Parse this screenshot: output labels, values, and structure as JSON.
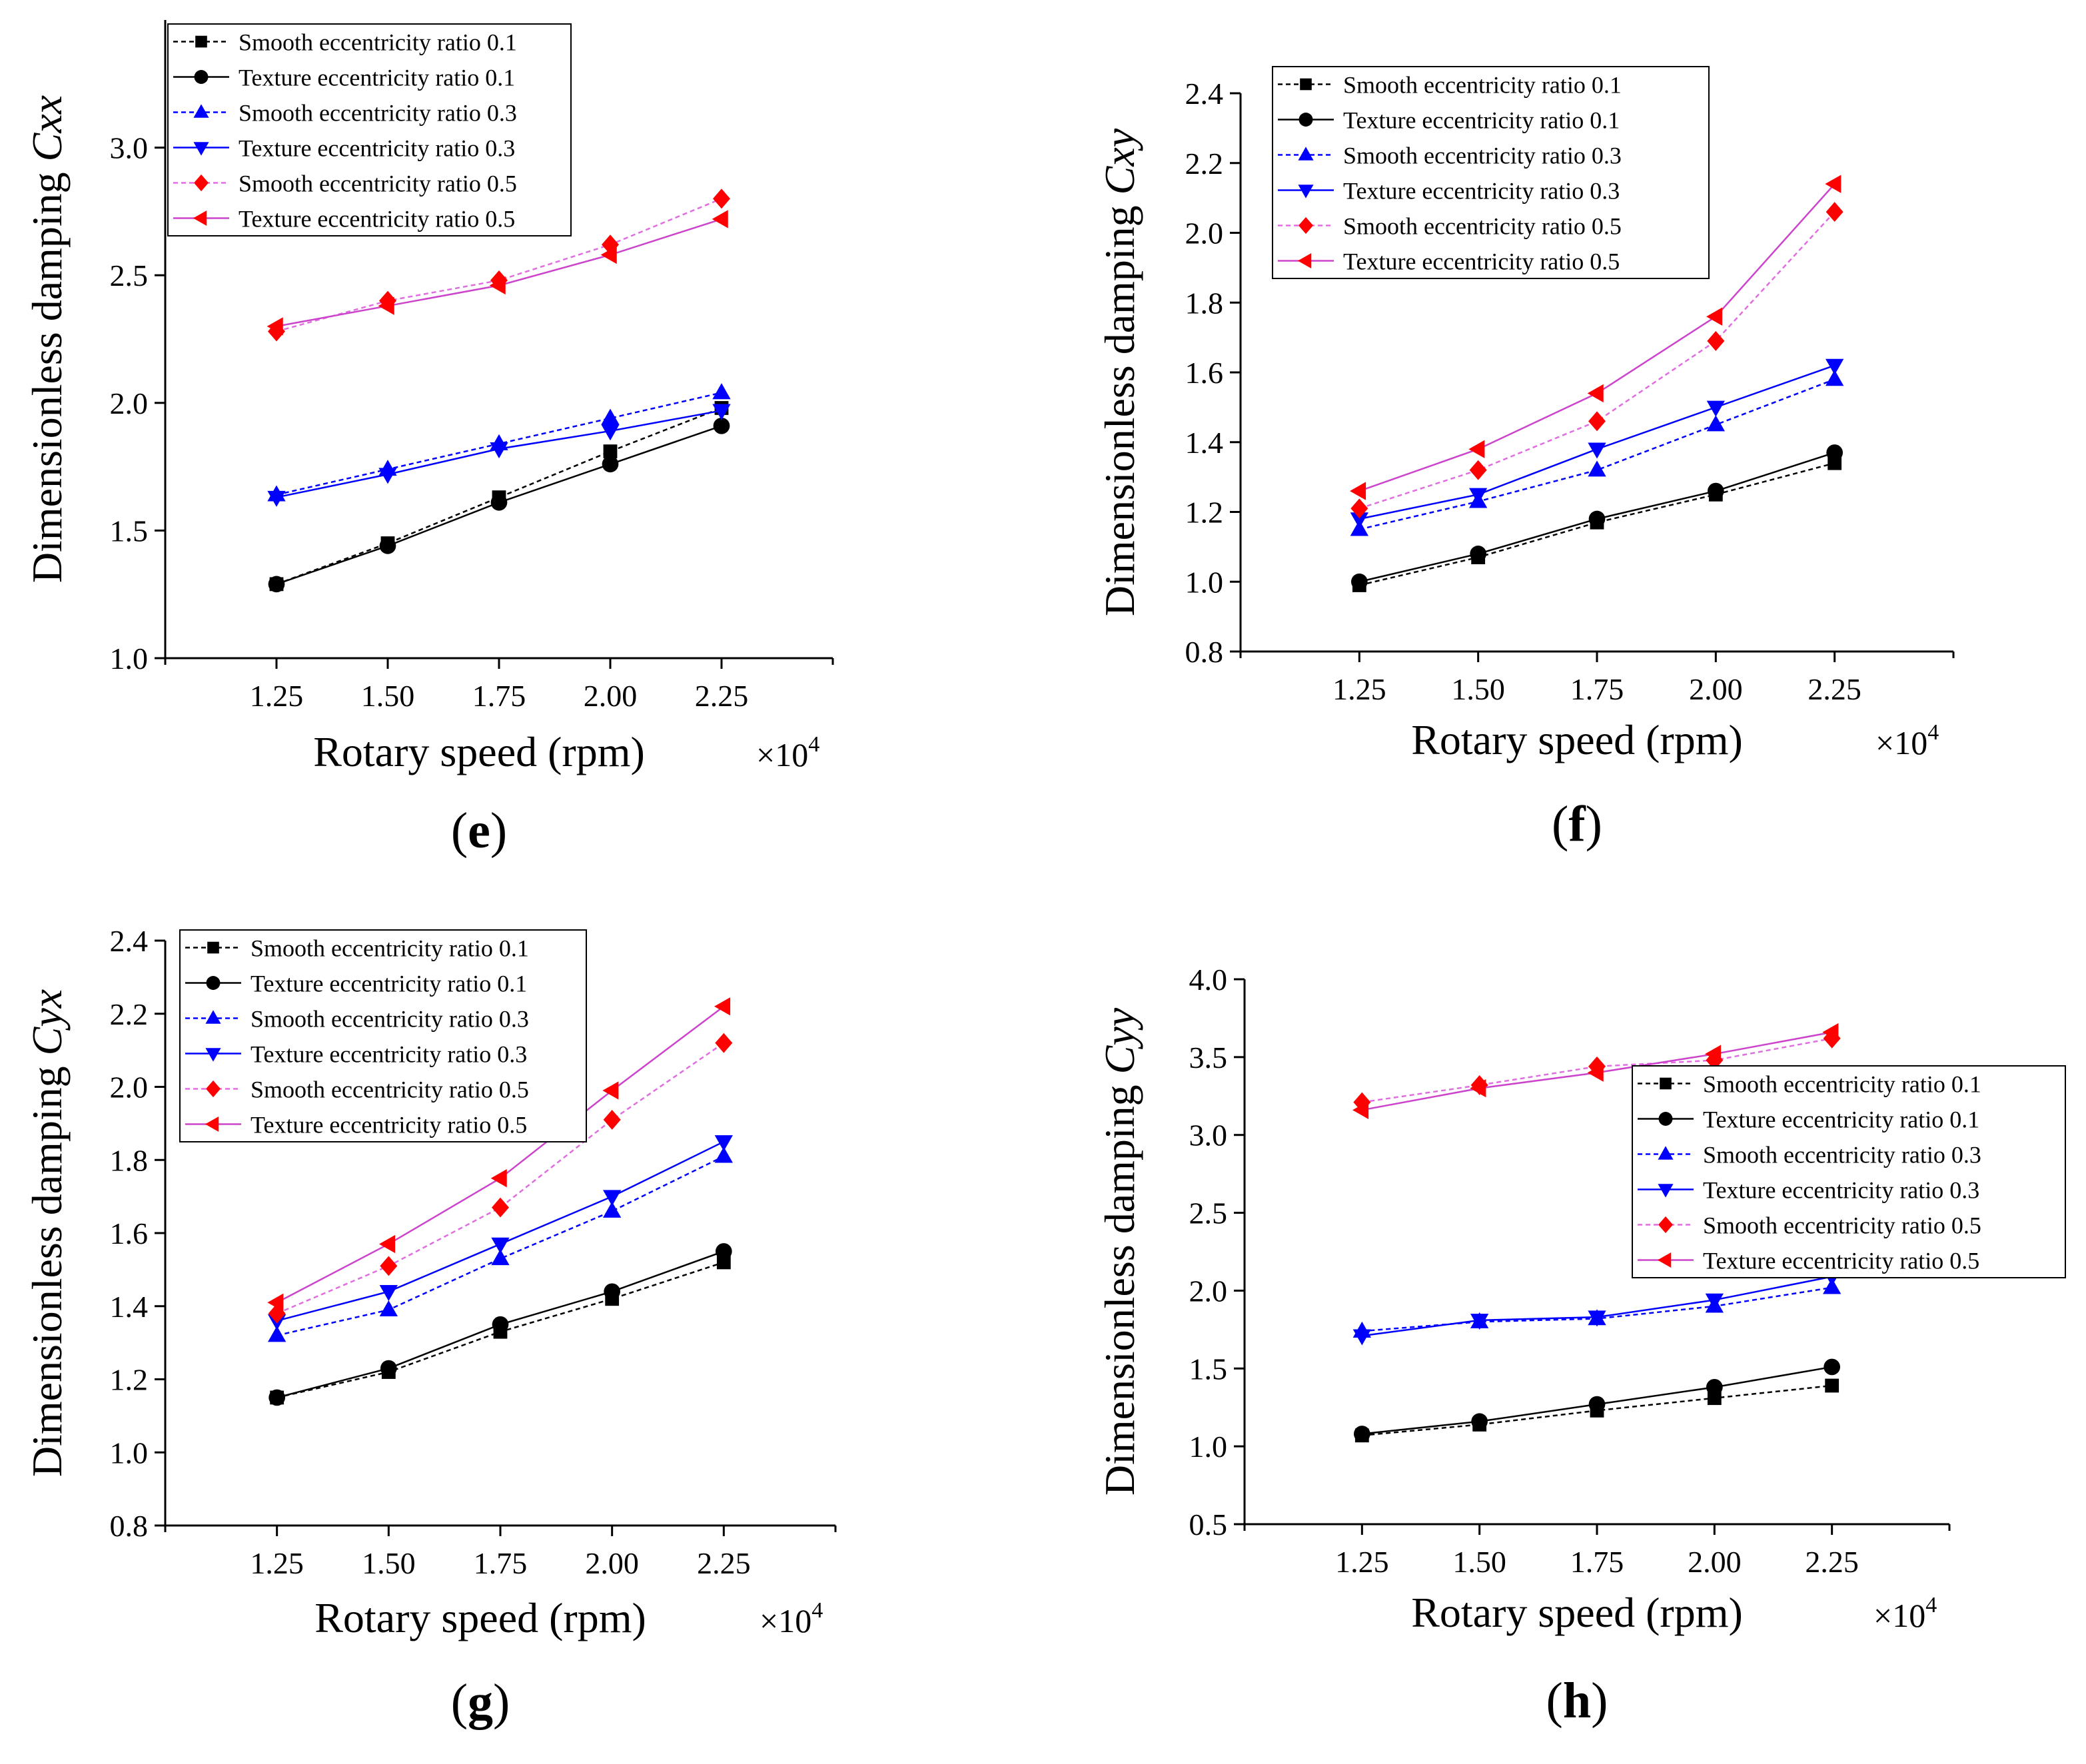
{
  "figure": {
    "panels": [
      "e",
      "f",
      "g",
      "h"
    ]
  },
  "chart_data": [
    {
      "panel": "e",
      "type": "line",
      "panel_label": "e",
      "xlabel": "Rotary speed (rpm)",
      "x_multiplier": "×10",
      "x_multiplier_exp": "4",
      "ylabel_prefix": "Dimensionless damping ",
      "ylabel_symbol": "Cxx",
      "x": [
        1.25,
        1.5,
        1.75,
        2.0,
        2.25
      ],
      "x_tick_labels": [
        "1.25",
        "1.50",
        "1.75",
        "2.00",
        "2.25"
      ],
      "xlim": [
        1.0,
        2.5
      ],
      "ylim": [
        1.0,
        3.5
      ],
      "y_ticks": [
        1.0,
        1.5,
        2.0,
        2.5,
        3.0
      ],
      "y_tick_labels": [
        "1.0",
        "1.5",
        "2.0",
        "2.5",
        "3.0"
      ],
      "legend_position": "top-left",
      "series": [
        {
          "name": "Smooth eccentricity ratio 0.1",
          "values": [
            1.29,
            1.45,
            1.63,
            1.81,
            1.98
          ],
          "color": "#000000",
          "marker": "square",
          "dashed": true
        },
        {
          "name": "Texture eccentricity ratio 0.1",
          "values": [
            1.29,
            1.44,
            1.61,
            1.76,
            1.91
          ],
          "color": "#000000",
          "marker": "circle",
          "dashed": false
        },
        {
          "name": "Smooth eccentricity ratio 0.3",
          "values": [
            1.64,
            1.74,
            1.84,
            1.94,
            2.04
          ],
          "color": "#0000ff",
          "marker": "triangle-up",
          "dashed": true
        },
        {
          "name": "Texture eccentricity ratio 0.3",
          "values": [
            1.63,
            1.72,
            1.82,
            1.89,
            1.97
          ],
          "color": "#0000ff",
          "marker": "triangle-down",
          "dashed": false
        },
        {
          "name": "Smooth eccentricity ratio 0.5",
          "values": [
            2.28,
            2.4,
            2.48,
            2.62,
            2.8
          ],
          "color": "#ff0000",
          "marker": "diamond",
          "dashed": true
        },
        {
          "name": "Texture eccentricity ratio 0.5",
          "values": [
            2.3,
            2.38,
            2.46,
            2.58,
            2.72
          ],
          "color": "#ff0000",
          "marker": "triangle-left",
          "dashed": false
        }
      ]
    },
    {
      "panel": "f",
      "type": "line",
      "panel_label": "f",
      "xlabel": "Rotary speed (rpm)",
      "x_multiplier": "×10",
      "x_multiplier_exp": "4",
      "ylabel_prefix": "Dimensionless damping ",
      "ylabel_symbol": "Cxy",
      "x": [
        1.25,
        1.5,
        1.75,
        2.0,
        2.25
      ],
      "x_tick_labels": [
        "1.25",
        "1.50",
        "1.75",
        "2.00",
        "2.25"
      ],
      "xlim": [
        1.0,
        2.5
      ],
      "ylim": [
        0.8,
        2.4
      ],
      "y_ticks": [
        0.8,
        1.0,
        1.2,
        1.4,
        1.6,
        1.8,
        2.0,
        2.2,
        2.4
      ],
      "y_tick_labels": [
        "0.8",
        "1.0",
        "1.2",
        "1.4",
        "1.6",
        "1.8",
        "2.0",
        "2.2",
        "2.4"
      ],
      "legend_position": "top-left",
      "series": [
        {
          "name": "Smooth eccentricity ratio 0.1",
          "values": [
            0.99,
            1.07,
            1.17,
            1.25,
            1.34
          ],
          "color": "#000000",
          "marker": "square",
          "dashed": true
        },
        {
          "name": "Texture eccentricity ratio 0.1",
          "values": [
            1.0,
            1.08,
            1.18,
            1.26,
            1.37
          ],
          "color": "#000000",
          "marker": "circle",
          "dashed": false
        },
        {
          "name": "Smooth eccentricity ratio 0.3",
          "values": [
            1.15,
            1.23,
            1.32,
            1.45,
            1.58
          ],
          "color": "#0000ff",
          "marker": "triangle-up",
          "dashed": true
        },
        {
          "name": "Texture eccentricity ratio 0.3",
          "values": [
            1.18,
            1.25,
            1.38,
            1.5,
            1.62
          ],
          "color": "#0000ff",
          "marker": "triangle-down",
          "dashed": false
        },
        {
          "name": "Smooth eccentricity ratio 0.5",
          "values": [
            1.21,
            1.32,
            1.46,
            1.69,
            2.06
          ],
          "color": "#ff0000",
          "marker": "diamond",
          "dashed": true
        },
        {
          "name": "Texture eccentricity ratio 0.5",
          "values": [
            1.26,
            1.38,
            1.54,
            1.76,
            2.14
          ],
          "color": "#ff0000",
          "marker": "triangle-left",
          "dashed": false
        }
      ]
    },
    {
      "panel": "g",
      "type": "line",
      "panel_label": "g",
      "xlabel": "Rotary speed (rpm)",
      "x_multiplier": "×10",
      "x_multiplier_exp": "4",
      "ylabel_prefix": "Dimensionless damping ",
      "ylabel_symbol": "Cyx",
      "x": [
        1.25,
        1.5,
        1.75,
        2.0,
        2.25
      ],
      "x_tick_labels": [
        "1.25",
        "1.50",
        "1.75",
        "2.00",
        "2.25"
      ],
      "xlim": [
        1.0,
        2.5
      ],
      "ylim": [
        0.8,
        2.4
      ],
      "y_ticks": [
        0.8,
        1.0,
        1.2,
        1.4,
        1.6,
        1.8,
        2.0,
        2.2,
        2.4
      ],
      "y_tick_labels": [
        "0.8",
        "1.0",
        "1.2",
        "1.4",
        "1.6",
        "1.8",
        "2.0",
        "2.2",
        "2.4"
      ],
      "legend_position": "top-left",
      "series": [
        {
          "name": "Smooth eccentricity ratio 0.1",
          "values": [
            1.15,
            1.22,
            1.33,
            1.42,
            1.52
          ],
          "color": "#000000",
          "marker": "square",
          "dashed": true
        },
        {
          "name": "Texture eccentricity ratio 0.1",
          "values": [
            1.15,
            1.23,
            1.35,
            1.44,
            1.55
          ],
          "color": "#000000",
          "marker": "circle",
          "dashed": false
        },
        {
          "name": "Smooth eccentricity ratio 0.3",
          "values": [
            1.32,
            1.39,
            1.53,
            1.66,
            1.81
          ],
          "color": "#0000ff",
          "marker": "triangle-up",
          "dashed": true
        },
        {
          "name": "Texture eccentricity ratio 0.3",
          "values": [
            1.36,
            1.44,
            1.57,
            1.7,
            1.85
          ],
          "color": "#0000ff",
          "marker": "triangle-down",
          "dashed": false
        },
        {
          "name": "Smooth eccentricity ratio 0.5",
          "values": [
            1.38,
            1.51,
            1.67,
            1.91,
            2.12
          ],
          "color": "#ff0000",
          "marker": "diamond",
          "dashed": true
        },
        {
          "name": "Texture eccentricity ratio 0.5",
          "values": [
            1.41,
            1.57,
            1.75,
            1.99,
            2.22
          ],
          "color": "#ff0000",
          "marker": "triangle-left",
          "dashed": false
        }
      ]
    },
    {
      "panel": "h",
      "type": "line",
      "panel_label": "h",
      "xlabel": "Rotary speed (rpm)",
      "x_multiplier": "×10",
      "x_multiplier_exp": "4",
      "ylabel_prefix": "Dimensionless damping ",
      "ylabel_symbol": "Cyy",
      "x": [
        1.25,
        1.5,
        1.75,
        2.0,
        2.25
      ],
      "x_tick_labels": [
        "1.25",
        "1.50",
        "1.75",
        "2.00",
        "2.25"
      ],
      "xlim": [
        1.0,
        2.5
      ],
      "ylim": [
        0.5,
        4.0
      ],
      "y_ticks": [
        0.5,
        1.0,
        1.5,
        2.0,
        2.5,
        3.0,
        3.5,
        4.0
      ],
      "y_tick_labels": [
        "0.5",
        "1.0",
        "1.5",
        "2.0",
        "2.5",
        "3.0",
        "3.5",
        "4.0"
      ],
      "legend_position": "right",
      "series": [
        {
          "name": "Smooth eccentricity ratio 0.1",
          "values": [
            1.07,
            1.14,
            1.23,
            1.31,
            1.39
          ],
          "color": "#000000",
          "marker": "square",
          "dashed": true
        },
        {
          "name": "Texture eccentricity ratio 0.1",
          "values": [
            1.08,
            1.16,
            1.27,
            1.38,
            1.51
          ],
          "color": "#000000",
          "marker": "circle",
          "dashed": false
        },
        {
          "name": "Smooth eccentricity ratio 0.3",
          "values": [
            1.74,
            1.8,
            1.82,
            1.9,
            2.02
          ],
          "color": "#0000ff",
          "marker": "triangle-up",
          "dashed": true
        },
        {
          "name": "Texture eccentricity ratio 0.3",
          "values": [
            1.71,
            1.81,
            1.83,
            1.94,
            2.09
          ],
          "color": "#0000ff",
          "marker": "triangle-down",
          "dashed": false
        },
        {
          "name": "Smooth eccentricity ratio 0.5",
          "values": [
            3.21,
            3.32,
            3.44,
            3.48,
            3.62
          ],
          "color": "#ff0000",
          "marker": "diamond",
          "dashed": true
        },
        {
          "name": "Texture eccentricity ratio 0.5",
          "values": [
            3.16,
            3.3,
            3.4,
            3.52,
            3.66
          ],
          "color": "#ff0000",
          "marker": "triangle-left",
          "dashed": false
        }
      ]
    }
  ]
}
